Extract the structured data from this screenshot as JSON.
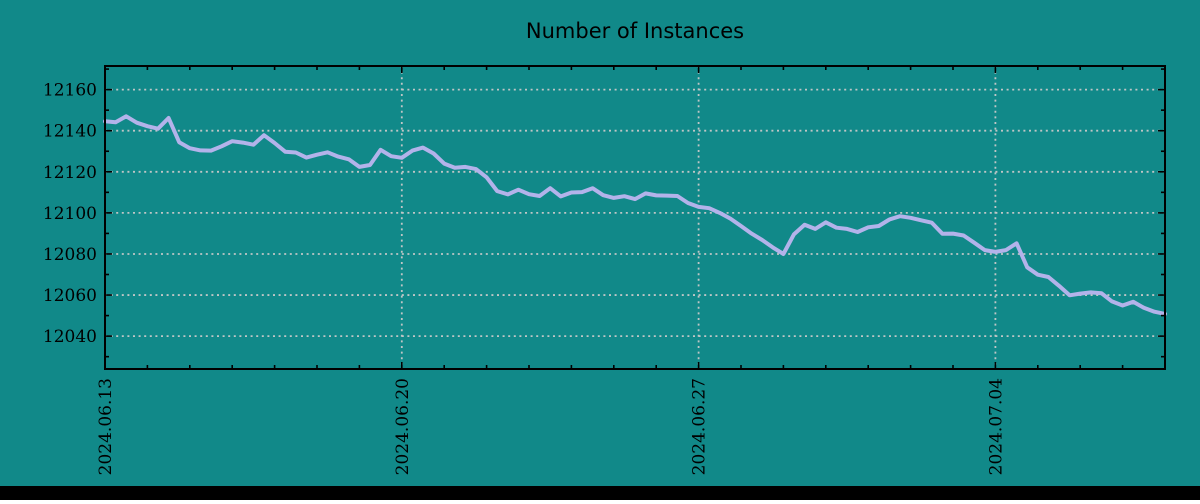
{
  "window": {
    "background_color": "#118989",
    "bottom_bar_color": "#000000",
    "axis_color": "#000000",
    "text_color": "#000000"
  },
  "chart_data": {
    "type": "line",
    "title": "Number of Instances",
    "grid": {
      "show": true,
      "style": "dashed",
      "color": "#c0c6c6"
    },
    "legend": null,
    "x_axis": {
      "tick_labels": [
        "2024.06.13",
        "2024.06.20",
        "2024.06.27",
        "2024.07.04"
      ],
      "tick_days": [
        0,
        7,
        14,
        21
      ],
      "minor_tick_interval_days": 1,
      "range_days": [
        0,
        25
      ]
    },
    "y_axis": {
      "tick_values": [
        12040,
        12060,
        12080,
        12100,
        12120,
        12140,
        12160
      ],
      "minor_tick_interval": 10,
      "range": [
        12024,
        12171.5
      ]
    },
    "series": [
      {
        "name": "Number of Instances",
        "color": "#b3b3ea",
        "x_start_day": 0,
        "x_step_days": 0.25,
        "values": [
          12144.6,
          12144.1,
          12147.0,
          12143.9,
          12142.2,
          12141.0,
          12146.2,
          12134.4,
          12131.5,
          12130.4,
          12130.3,
          12132.4,
          12134.9,
          12134.2,
          12133.2,
          12137.8,
          12134.0,
          12129.8,
          12129.4,
          12126.9,
          12128.3,
          12129.5,
          12127.4,
          12126.1,
          12122.4,
          12123.3,
          12130.7,
          12127.6,
          12126.8,
          12130.3,
          12131.8,
          12128.9,
          12124.0,
          12122.0,
          12122.4,
          12121.3,
          12117.3,
          12110.6,
          12109.0,
          12111.3,
          12109.1,
          12108.2,
          12112.0,
          12108.0,
          12109.9,
          12110.1,
          12112.0,
          12108.6,
          12107.3,
          12108.1,
          12106.7,
          12109.5,
          12108.5,
          12108.4,
          12108.2,
          12104.8,
          12102.9,
          12102.3,
          12100.0,
          12097.2,
          12093.6,
          12089.9,
          12086.8,
          12083.2,
          12080.0,
          12089.6,
          12094.2,
          12092.2,
          12095.4,
          12092.8,
          12092.2,
          12090.7,
          12093.0,
          12093.6,
          12096.8,
          12098.4,
          12097.6,
          12096.4,
          12095.2,
          12089.8,
          12089.9,
          12089.0,
          12085.5,
          12081.9,
          12081.0,
          12081.9,
          12085.2,
          12073.5,
          12069.9,
          12068.8,
          12064.5,
          12059.9,
          12060.7,
          12061.3,
          12060.9,
          12056.9,
          12054.9,
          12056.7,
          12053.8,
          12051.9,
          12050.8
        ]
      }
    ]
  }
}
